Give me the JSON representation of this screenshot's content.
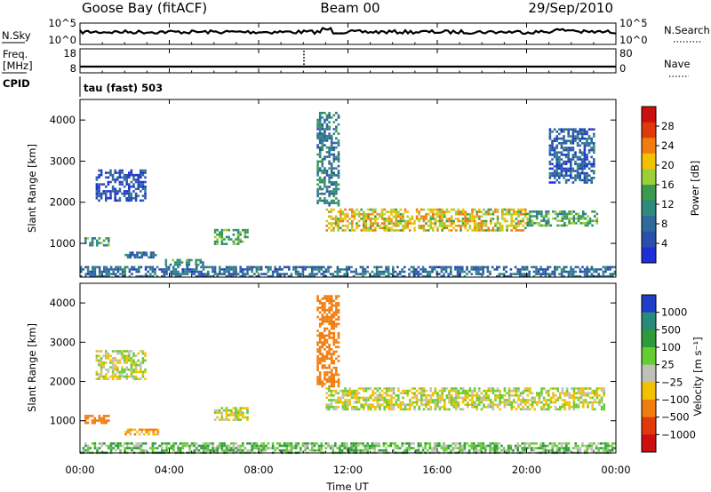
{
  "header": {
    "station": "Goose Bay (fitACF)",
    "beam": "Beam 00",
    "date": "29/Sep/2010"
  },
  "nsky_panel": {
    "left_label": "N.Sky",
    "right_label": "N.Search",
    "left_ticks": [
      "10^5",
      "10^0"
    ],
    "right_ticks": [
      "10^5",
      "10^0"
    ]
  },
  "freq_panel": {
    "label_line1": "Freq.",
    "label_line2": "[MHz]",
    "cpid_label": "CPID",
    "left_ticks": [
      "18",
      "8"
    ],
    "right_label": "Nave",
    "right_ticks": [
      "80",
      "0"
    ]
  },
  "cpid_text": "tau (fast) 503",
  "time_axis": {
    "ticks": [
      "00:00",
      "04:00",
      "08:00",
      "12:00",
      "16:00",
      "20:00",
      "00:00"
    ],
    "label": "Time UT"
  },
  "power_panel": {
    "ylabel": "Slant Range [km]",
    "yticks": [
      "1000",
      "2000",
      "3000",
      "4000"
    ],
    "colorbar_label": "Power [dB]",
    "colorbar_ticks": [
      "4",
      "8",
      "12",
      "16",
      "20",
      "24",
      "28"
    ]
  },
  "velocity_panel": {
    "ylabel": "Slant Range [km]",
    "yticks": [
      "1000",
      "2000",
      "3000",
      "4000"
    ],
    "colorbar_label": "Velocity [m s⁻¹]",
    "colorbar_ticks": [
      "1000",
      "500",
      "100",
      "25",
      "−25",
      "−100",
      "−500",
      "−1000"
    ]
  },
  "chart_data": [
    {
      "type": "heatmap",
      "title": "Power",
      "xlabel": "Time UT",
      "ylabel": "Slant Range [km]",
      "x_range_hours": [
        0,
        24
      ],
      "ylim": [
        180,
        4500
      ],
      "zlim": [
        0,
        32
      ],
      "colorscale": [
        "#1f2fd8",
        "#2a4fa8",
        "#2f6a9c",
        "#2e8a7c",
        "#3a9a52",
        "#9bcf38",
        "#f2c100",
        "#f07d10",
        "#e03a0a",
        "#cc1010"
      ],
      "echo_regions": [
        {
          "t": [
            0.7,
            2.9
          ],
          "r": [
            2050,
            2800
          ],
          "z": 5
        },
        {
          "t": [
            0.2,
            1.3
          ],
          "r": [
            950,
            1150
          ],
          "z": 12
        },
        {
          "t": [
            2.0,
            3.5
          ],
          "r": [
            650,
            800
          ],
          "z": 8
        },
        {
          "t": [
            3.8,
            5.5
          ],
          "r": [
            480,
            620
          ],
          "z": 12
        },
        {
          "t": [
            6.0,
            7.5
          ],
          "r": [
            1000,
            1350
          ],
          "z": 14
        },
        {
          "t": [
            10.6,
            11.6
          ],
          "r": [
            1900,
            4200
          ],
          "z": 10
        },
        {
          "t": [
            11.0,
            20.0
          ],
          "r": [
            1300,
            1850
          ],
          "z": 20
        },
        {
          "t": [
            20.0,
            23.2
          ],
          "r": [
            1450,
            1800
          ],
          "z": 14
        },
        {
          "t": [
            21.0,
            23.0
          ],
          "r": [
            2500,
            3800
          ],
          "z": 6
        },
        {
          "t": [
            0.0,
            24.0
          ],
          "r": [
            180,
            450
          ],
          "z": 8
        }
      ]
    },
    {
      "type": "heatmap",
      "title": "Velocity",
      "xlabel": "Time UT",
      "ylabel": "Slant Range [km]",
      "x_range_hours": [
        0,
        24
      ],
      "ylim": [
        180,
        4500
      ],
      "zlim": [
        -1000,
        1000
      ],
      "colorscale_levels": [
        1000,
        500,
        100,
        25,
        -25,
        -100,
        -500,
        -1000
      ],
      "colorscale": [
        "#1f3fc8",
        "#2a8a78",
        "#2e9a3c",
        "#66cc33",
        "#c0c0b8",
        "#f2c100",
        "#f07d10",
        "#e03a0a",
        "#cc1010"
      ],
      "echo_regions": [
        {
          "t": [
            0.7,
            2.9
          ],
          "r": [
            2050,
            2800
          ],
          "v": 0
        },
        {
          "t": [
            0.2,
            1.3
          ],
          "r": [
            950,
            1150
          ],
          "v": -250
        },
        {
          "t": [
            2.0,
            3.5
          ],
          "r": [
            650,
            800
          ],
          "v": -80
        },
        {
          "t": [
            6.0,
            7.5
          ],
          "r": [
            1000,
            1350
          ],
          "v": 0
        },
        {
          "t": [
            10.6,
            11.6
          ],
          "r": [
            1900,
            4200
          ],
          "v": -300
        },
        {
          "t": [
            11.0,
            23.5
          ],
          "r": [
            1300,
            1850
          ],
          "v": 0
        },
        {
          "t": [
            0.0,
            24.0
          ],
          "r": [
            180,
            450
          ],
          "v": 80
        }
      ]
    }
  ]
}
